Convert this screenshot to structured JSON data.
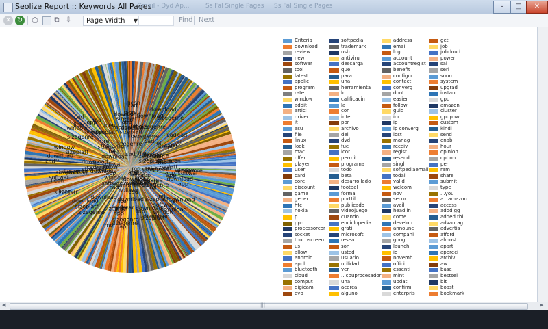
{
  "window": {
    "title": "Seolize Report :: Keywords All Pages",
    "ghost_tabs": [
      "Gmail - Dyd Ap...",
      "Ss Fal Single Pages",
      "Ss Fal Single Pages"
    ],
    "buttons": {
      "minimize": "–",
      "maximize": "□",
      "close": "✕"
    }
  },
  "toolbar": {
    "page_width": "Page Width",
    "find": "Find",
    "next": "Next",
    "icons": [
      "stop-icon",
      "refresh-icon",
      "print-icon",
      "page-icon",
      "two-pages-icon",
      "export-icon"
    ]
  },
  "chart_data": {
    "type": "pie",
    "note_visible": "large multi-colored pie with overlapping dark labels",
    "visible_label_fragments": [
      "cad",
      "app",
      "download",
      "softwar",
      "window",
      "sizeplatf",
      "licen",
      "sizegenre",
      "rel",
      "mo"
    ],
    "palette": [
      "#5b9bd5",
      "#ed7d31",
      "#a5a5a5",
      "#ffc000",
      "#4472c4",
      "#264478",
      "#9e480e",
      "#636363",
      "#997300",
      "#255e91",
      "#c55a11",
      "#f4b183",
      "#9dc3e6",
      "#ffd966",
      "#70ad47",
      "#7f6000",
      "#843c0c",
      "#1f3864",
      "#d9d9d9",
      "#2e75b6"
    ]
  },
  "legend": {
    "columns": [
      {
        "items": [
          {
            "label": "Criteria",
            "color": "#5b9bd5"
          },
          {
            "label": "download",
            "color": "#ed7d31"
          },
          {
            "label": "review",
            "color": "#a5a5a5"
          },
          {
            "label": "new",
            "color": "#264478"
          },
          {
            "label": "softwar",
            "color": "#9e480e"
          },
          {
            "label": "tool",
            "color": "#636363"
          },
          {
            "label": "latest",
            "color": "#997300"
          },
          {
            "label": "applic",
            "color": "#4472c4"
          },
          {
            "label": "program",
            "color": "#c55a11"
          },
          {
            "label": "rate",
            "color": "#7f7f7f"
          },
          {
            "label": "window",
            "color": "#ffd966"
          },
          {
            "label": "addit",
            "color": "#2e75b6"
          },
          {
            "label": "articl",
            "color": "#f4b183"
          },
          {
            "label": "driver",
            "color": "#9dc3e6"
          },
          {
            "label": "it",
            "color": "#ed7d31"
          },
          {
            "label": "asu",
            "color": "#5b9bd5"
          },
          {
            "label": "file",
            "color": "#264478"
          },
          {
            "label": "linux",
            "color": "#c55a11"
          },
          {
            "label": "look",
            "color": "#255e91"
          },
          {
            "label": "mac",
            "color": "#a5a5a5"
          },
          {
            "label": "offer",
            "color": "#997300"
          },
          {
            "label": "player",
            "color": "#ffc000"
          },
          {
            "label": "user",
            "color": "#4472c4"
          },
          {
            "label": "card",
            "color": "#843c0c"
          },
          {
            "label": "core",
            "color": "#5b9bd5"
          },
          {
            "label": "discount",
            "color": "#ffd966"
          },
          {
            "label": "game",
            "color": "#636363"
          },
          {
            "label": "gener",
            "color": "#f4b183"
          },
          {
            "label": "htc",
            "color": "#2e75b6"
          },
          {
            "label": "nokia",
            "color": "#9dc3e6"
          },
          {
            "label": "p",
            "color": "#ffc000"
          },
          {
            "label": "ppd",
            "color": "#7f6000"
          },
          {
            "label": "processorcor",
            "color": "#1f3864"
          },
          {
            "label": "socket",
            "color": "#264478"
          },
          {
            "label": "touchscreen",
            "color": "#a5a5a5"
          },
          {
            "label": "us",
            "color": "#c55a11"
          },
          {
            "label": "allow",
            "color": "#ffd966"
          },
          {
            "label": "android",
            "color": "#4472c4"
          },
          {
            "label": "appl",
            "color": "#ed7d31"
          },
          {
            "label": "bluetooth",
            "color": "#5b9bd5"
          },
          {
            "label": "cloud",
            "color": "#d9d9d9"
          },
          {
            "label": "comput",
            "color": "#997300"
          },
          {
            "label": "digicam",
            "color": "#f4b183"
          },
          {
            "label": "evo",
            "color": "#9e480e"
          }
        ]
      },
      {
        "items": [
          {
            "label": "softpedia",
            "color": "#264478"
          },
          {
            "label": "trademark",
            "color": "#636363"
          },
          {
            "label": "usb",
            "color": "#1f3864"
          },
          {
            "label": "antiviru",
            "color": "#ffd966"
          },
          {
            "label": "descarga",
            "color": "#4472c4"
          },
          {
            "label": "que",
            "color": "#c55a11"
          },
          {
            "label": "para",
            "color": "#255e91"
          },
          {
            "label": "una",
            "color": "#ffc000"
          },
          {
            "label": "herramienta",
            "color": "#636363"
          },
          {
            "label": "lo",
            "color": "#f4b183"
          },
          {
            "label": "calificacin",
            "color": "#2e75b6"
          },
          {
            "label": "la",
            "color": "#5b9bd5"
          },
          {
            "label": "con",
            "color": "#ed7d31"
          },
          {
            "label": "intel",
            "color": "#9dc3e6"
          },
          {
            "label": "por",
            "color": "#843c0c"
          },
          {
            "label": "archivo",
            "color": "#ffd966"
          },
          {
            "label": "del",
            "color": "#a5a5a5"
          },
          {
            "label": "dvd",
            "color": "#264478"
          },
          {
            "label": "fue",
            "color": "#997300"
          },
          {
            "label": "icor",
            "color": "#4472c4"
          },
          {
            "label": "permit",
            "color": "#ffc000"
          },
          {
            "label": "programa",
            "color": "#c55a11"
          },
          {
            "label": "todo",
            "color": "#d9d9d9"
          },
          {
            "label": "beta",
            "color": "#255e91"
          },
          {
            "label": "desarrollado",
            "color": "#f4b183"
          },
          {
            "label": "footbal",
            "color": "#1f3864"
          },
          {
            "label": "forma",
            "color": "#5b9bd5"
          },
          {
            "label": "porttil",
            "color": "#ed7d31"
          },
          {
            "label": "publicado",
            "color": "#ffd966"
          },
          {
            "label": "videojuego",
            "color": "#636363"
          },
          {
            "label": "cuando",
            "color": "#9e480e"
          },
          {
            "label": "enciclopedia",
            "color": "#4472c4"
          },
          {
            "label": "grati",
            "color": "#ffc000"
          },
          {
            "label": "microsoft",
            "color": "#264478"
          },
          {
            "label": "resea",
            "color": "#2e75b6"
          },
          {
            "label": "son",
            "color": "#c55a11"
          },
          {
            "label": "usted",
            "color": "#9dc3e6"
          },
          {
            "label": "usuario",
            "color": "#a5a5a5"
          },
          {
            "label": "utilidad",
            "color": "#997300"
          },
          {
            "label": "ver",
            "color": "#255e91"
          },
          {
            "label": "...cpuprocesador",
            "color": "#ed7d31"
          },
          {
            "label": "una",
            "color": "#d9d9d9"
          },
          {
            "label": "acerca",
            "color": "#4472c4"
          },
          {
            "label": "alguno",
            "color": "#ffc000"
          }
        ]
      },
      {
        "items": [
          {
            "label": "address",
            "color": "#ffd966"
          },
          {
            "label": "email",
            "color": "#2e75b6"
          },
          {
            "label": "log",
            "color": "#c55a11"
          },
          {
            "label": "account",
            "color": "#5b9bd5"
          },
          {
            "label": "accountregist",
            "color": "#264478"
          },
          {
            "label": "benefit",
            "color": "#636363"
          },
          {
            "label": "configur",
            "color": "#f4b183"
          },
          {
            "label": "contact",
            "color": "#ffc000"
          },
          {
            "label": "converg",
            "color": "#4472c4"
          },
          {
            "label": "dont",
            "color": "#a5a5a5"
          },
          {
            "label": "easier",
            "color": "#9dc3e6"
          },
          {
            "label": "follow",
            "color": "#c55a11"
          },
          {
            "label": "guid",
            "color": "#ffd966"
          },
          {
            "label": "inc",
            "color": "#d9d9d9"
          },
          {
            "label": "ip",
            "color": "#1f3864"
          },
          {
            "label": "ip converg",
            "color": "#5b9bd5"
          },
          {
            "label": "lost",
            "color": "#264478"
          },
          {
            "label": "manag",
            "color": "#997300"
          },
          {
            "label": "receiv",
            "color": "#2e75b6"
          },
          {
            "label": "regist",
            "color": "#f4b183"
          },
          {
            "label": "resend",
            "color": "#255e91"
          },
          {
            "label": "singl",
            "color": "#a5a5a5"
          },
          {
            "label": "softpediaemail",
            "color": "#ffd966"
          },
          {
            "label": "todai",
            "color": "#4472c4"
          },
          {
            "label": "valid",
            "color": "#ed7d31"
          },
          {
            "label": "welcom",
            "color": "#ffc000"
          },
          {
            "label": "nov",
            "color": "#c55a11"
          },
          {
            "label": "secur",
            "color": "#636363"
          },
          {
            "label": "avail",
            "color": "#5b9bd5"
          },
          {
            "label": "headlin",
            "color": "#1f3864"
          },
          {
            "label": "come",
            "color": "#ffd966"
          },
          {
            "label": "develop",
            "color": "#2e75b6"
          },
          {
            "label": "announc",
            "color": "#ed7d31"
          },
          {
            "label": "compani",
            "color": "#9dc3e6"
          },
          {
            "label": "googl",
            "color": "#a5a5a5"
          },
          {
            "label": "launch",
            "color": "#264478"
          },
          {
            "label": "io",
            "color": "#ffc000"
          },
          {
            "label": "novemb",
            "color": "#c55a11"
          },
          {
            "label": "offici",
            "color": "#4472c4"
          },
          {
            "label": "essenti",
            "color": "#997300"
          },
          {
            "label": "mint",
            "color": "#f4b183"
          },
          {
            "label": "updat",
            "color": "#5b9bd5"
          },
          {
            "label": "confirm",
            "color": "#255e91"
          },
          {
            "label": "enterpris",
            "color": "#d9d9d9"
          }
        ]
      },
      {
        "items": [
          {
            "label": "get",
            "color": "#c55a11"
          },
          {
            "label": "job",
            "color": "#ffd966"
          },
          {
            "label": "jolicloud",
            "color": "#4472c4"
          },
          {
            "label": "power",
            "color": "#f4b183"
          },
          {
            "label": "sai",
            "color": "#264478"
          },
          {
            "label": "seri",
            "color": "#a5a5a5"
          },
          {
            "label": "sourc",
            "color": "#5b9bd5"
          },
          {
            "label": "system",
            "color": "#ed7d31"
          },
          {
            "label": "upgrad",
            "color": "#843c0c"
          },
          {
            "label": "instanc",
            "color": "#2e75b6"
          },
          {
            "label": "gpu",
            "color": "#d9d9d9"
          },
          {
            "label": "amazon",
            "color": "#1f3864"
          },
          {
            "label": "cluster",
            "color": "#9dc3e6"
          },
          {
            "label": "gpupow",
            "color": "#ffc000"
          },
          {
            "label": "custom",
            "color": "#c55a11"
          },
          {
            "label": "kindl",
            "color": "#255e91"
          },
          {
            "label": "send",
            "color": "#ffd966"
          },
          {
            "label": "enabl",
            "color": "#264478"
          },
          {
            "label": "hour",
            "color": "#f4b183"
          },
          {
            "label": "opinion",
            "color": "#ed7d31"
          },
          {
            "label": "option",
            "color": "#a5a5a5"
          },
          {
            "label": "per",
            "color": "#4472c4"
          },
          {
            "label": "ram",
            "color": "#ffc000"
          },
          {
            "label": "share",
            "color": "#9e480e"
          },
          {
            "label": "submit",
            "color": "#5b9bd5"
          },
          {
            "label": "type",
            "color": "#d9d9d9"
          },
          {
            "label": "...you",
            "color": "#997300"
          },
          {
            "label": "a...amazon",
            "color": "#ed7d31"
          },
          {
            "label": "access",
            "color": "#264478"
          },
          {
            "label": "adddigg",
            "color": "#f4b183"
          },
          {
            "label": "added.thi",
            "color": "#255e91"
          },
          {
            "label": "advantag",
            "color": "#ffd966"
          },
          {
            "label": "advertis",
            "color": "#636363"
          },
          {
            "label": "afford",
            "color": "#c55a11"
          },
          {
            "label": "almost",
            "color": "#9dc3e6"
          },
          {
            "label": "apart",
            "color": "#5b9bd5"
          },
          {
            "label": "appreci",
            "color": "#2e75b6"
          },
          {
            "label": "archiv",
            "color": "#ffc000"
          },
          {
            "label": "aw",
            "color": "#843c0c"
          },
          {
            "label": "base",
            "color": "#4472c4"
          },
          {
            "label": "bestsel",
            "color": "#a5a5a5"
          },
          {
            "label": "bit",
            "color": "#1f3864"
          },
          {
            "label": "boast",
            "color": "#ffd966"
          },
          {
            "label": "bookmark",
            "color": "#ed7d31"
          }
        ]
      }
    ]
  }
}
